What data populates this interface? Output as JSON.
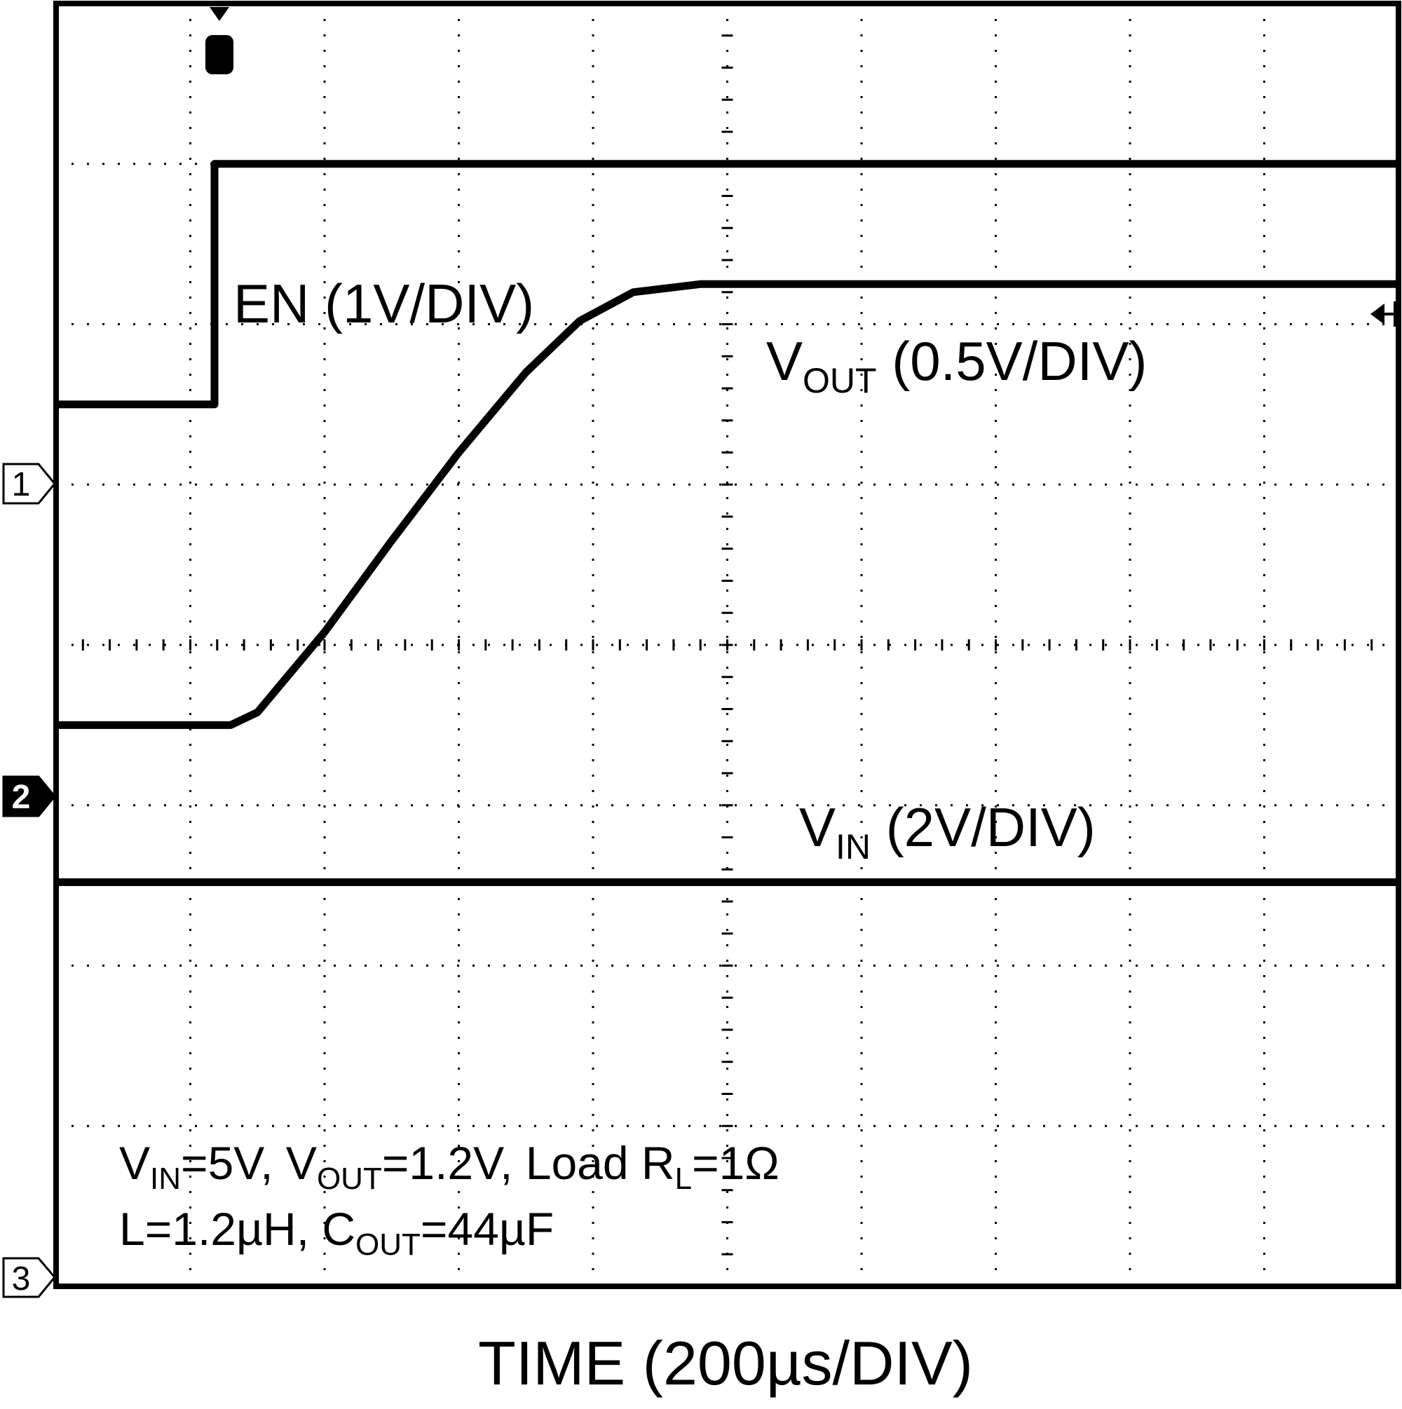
{
  "chart_data": {
    "type": "line",
    "title": "",
    "xlabel": "TIME (200µs/DIV)",
    "ylabel": "",
    "grid": true,
    "x_divisions": 10,
    "y_divisions": 8,
    "xlim": [
      0,
      10
    ],
    "ylim": [
      0,
      8
    ],
    "trigger_marker": "T",
    "channel_markers": [
      "1",
      "2",
      "3"
    ],
    "series": [
      {
        "label_main": "EN (1V/DIV)",
        "label_sub": "",
        "label_rest": "",
        "ground_marker": "1",
        "x": [
          0,
          1.18,
          1.18,
          10
        ],
        "y": [
          5.5,
          5.5,
          7.0,
          7.0
        ]
      },
      {
        "label_main": "V",
        "label_sub": "OUT",
        "label_rest": " (0.5V/DIV)",
        "ground_marker": "2",
        "x": [
          0,
          1.3,
          1.5,
          2.0,
          2.5,
          3.0,
          3.5,
          3.9,
          4.3,
          4.8,
          10
        ],
        "y": [
          3.5,
          3.5,
          3.58,
          4.08,
          4.65,
          5.2,
          5.7,
          6.02,
          6.2,
          6.25,
          6.25
        ]
      },
      {
        "label_main": "V",
        "label_sub": "IN",
        "label_rest": " (2V/DIV)",
        "ground_marker": "3",
        "x": [
          0,
          10
        ],
        "y": [
          2.52,
          2.52
        ]
      }
    ],
    "annotations": [
      {
        "parts": [
          {
            "t": "V",
            "sub": false
          },
          {
            "t": "IN",
            "sub": true
          },
          {
            "t": "=5V, V",
            "sub": false
          },
          {
            "t": "OUT",
            "sub": true
          },
          {
            "t": "=1.2V, Load R",
            "sub": false
          },
          {
            "t": "L",
            "sub": true
          },
          {
            "t": "=1Ω",
            "sub": false
          }
        ]
      },
      {
        "parts": [
          {
            "t": "L=1.2µH, C",
            "sub": false
          },
          {
            "t": "OUT",
            "sub": true
          },
          {
            "t": "=44µF",
            "sub": false
          }
        ]
      }
    ]
  }
}
